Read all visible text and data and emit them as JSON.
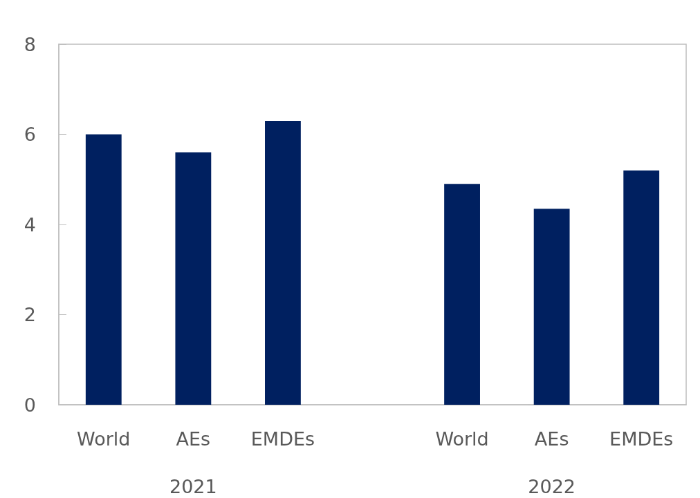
{
  "chart_data": {
    "type": "bar",
    "categories": [
      "World",
      "AEs",
      "EMDEs",
      null,
      "World",
      "AEs",
      "EMDEs"
    ],
    "values": [
      6.0,
      5.6,
      6.3,
      null,
      4.9,
      4.35,
      5.2
    ],
    "color": "#002060",
    "ylim": [
      0,
      8
    ],
    "yticks": [
      0,
      2,
      4,
      6,
      8
    ],
    "annotations": [
      "2021",
      "2022"
    ]
  }
}
